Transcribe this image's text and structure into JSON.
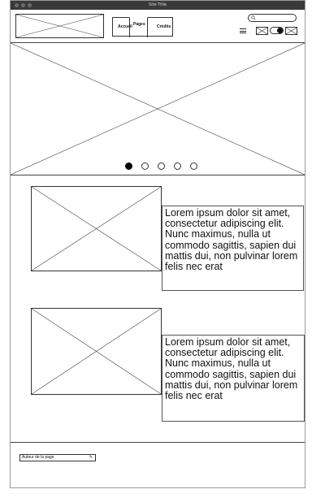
{
  "window": {
    "title": "Site Title"
  },
  "header": {
    "nav": {
      "item1": "Accueil",
      "item2": "Pages",
      "item3": "Crédits"
    },
    "search": {
      "icon": "search-icon",
      "placeholder": ""
    },
    "icons": [
      "hamburger-menu-icon",
      "image-placeholder-icon",
      "toggle-switch",
      "image-placeholder-icon"
    ]
  },
  "carousel": {
    "slide_count": 5,
    "active_index": 1
  },
  "content": {
    "block1_text": "Lorem ipsum dolor sit amet, consectetur adipiscing elit. Nunc maximus, nulla ut commodo sagittis, sapien dui mattis dui, non pulvinar lorem felis nec erat",
    "block2_text": "Lorem ipsum dolor sit amet, consectetur adipiscing elit. Nunc maximus, nulla ut commodo sagittis, sapien dui mattis dui, non pulvinar lorem felis nec erat"
  },
  "footer": {
    "author_label": "Auteur de la page",
    "author_icon": "edit-icon"
  }
}
